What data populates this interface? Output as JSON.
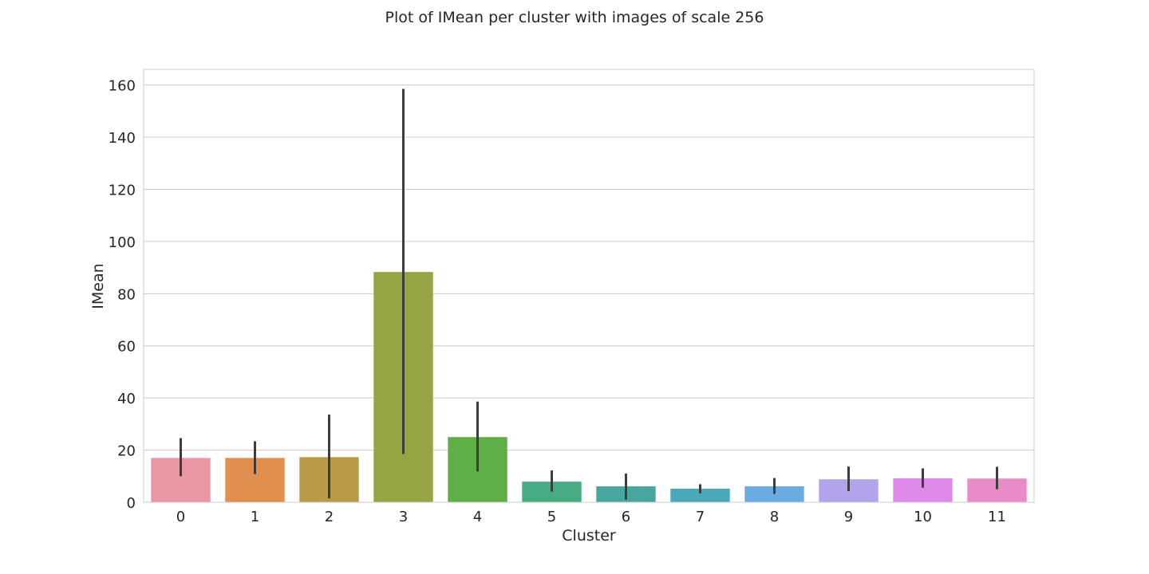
{
  "chart_data": {
    "type": "bar",
    "title": "Plot of IMean per cluster with images of scale 256",
    "xlabel": "Cluster",
    "ylabel": "IMean",
    "categories": [
      "0",
      "1",
      "2",
      "3",
      "4",
      "5",
      "6",
      "7",
      "8",
      "9",
      "10",
      "11"
    ],
    "values": [
      17.0,
      17.0,
      17.3,
      88.3,
      25.0,
      7.9,
      6.1,
      5.2,
      6.1,
      8.8,
      9.2,
      9.1
    ],
    "error_bars": [
      [
        10.0,
        24.6
      ],
      [
        10.8,
        23.4
      ],
      [
        1.5,
        33.6
      ],
      [
        18.5,
        158.5
      ],
      [
        11.8,
        38.6
      ],
      [
        4.1,
        12.2
      ],
      [
        1.0,
        11.0
      ],
      [
        3.4,
        6.9
      ],
      [
        3.2,
        9.3
      ],
      [
        4.3,
        13.7
      ],
      [
        5.6,
        13.0
      ],
      [
        5.0,
        13.6
      ]
    ],
    "colors": [
      "#ea96a3",
      "#e08f4f",
      "#b89a49",
      "#97a444",
      "#5fae46",
      "#47ab84",
      "#49a69e",
      "#4aa8b8",
      "#6aabe1",
      "#b3a3eb",
      "#df8aea",
      "#e98bc6"
    ],
    "error_bar_color": "#3d3d3d",
    "ylim": [
      0,
      166
    ],
    "yticks": [
      0,
      20,
      40,
      60,
      80,
      100,
      120,
      140,
      160
    ],
    "grid": true,
    "legend": "none"
  }
}
